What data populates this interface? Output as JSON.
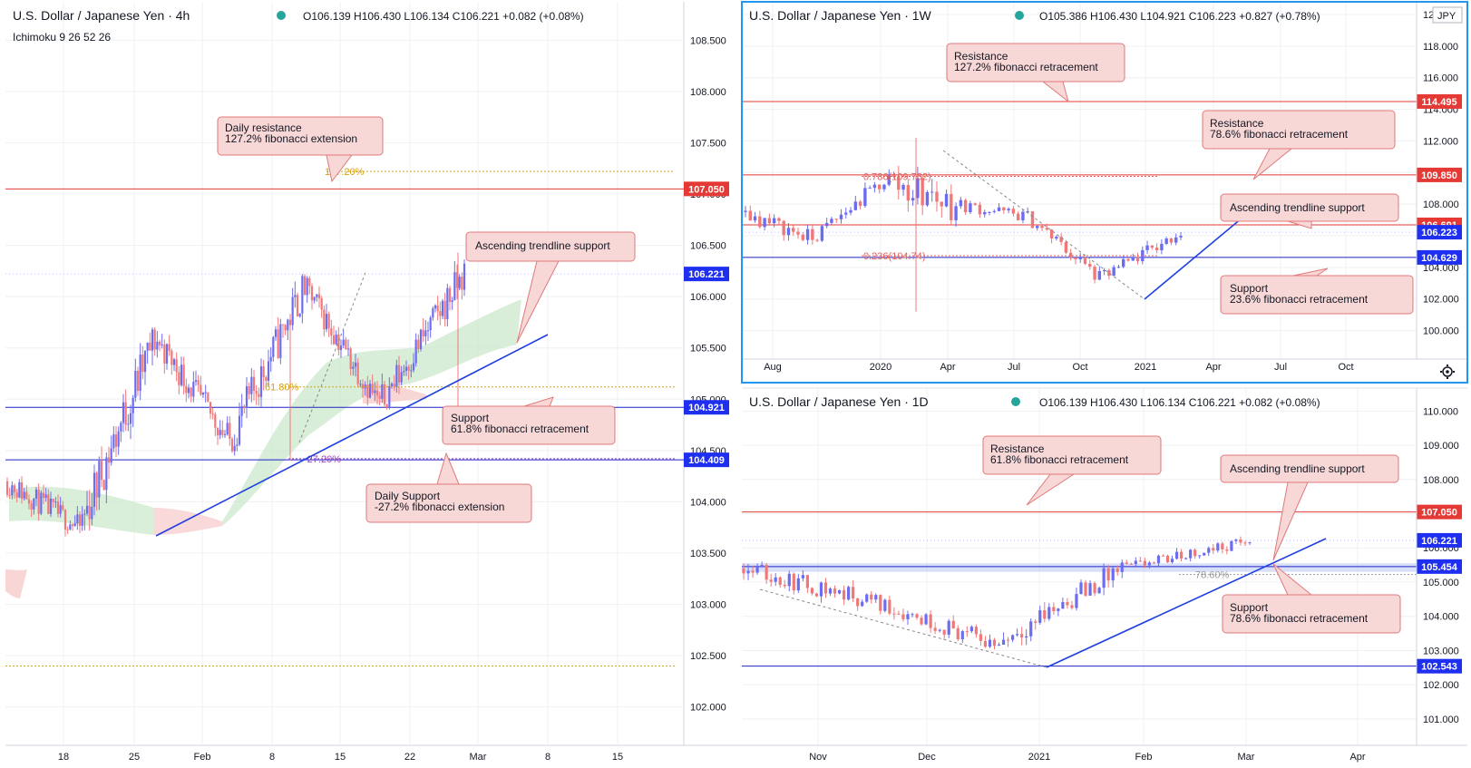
{
  "colors": {
    "up": "#6c6cf0",
    "down": "#f07878",
    "resistance": "#e53935",
    "support": "#1e22c8",
    "fib_gold": "#d4a017",
    "fib_red": "#e06060",
    "callout_fill": "#f8d7d7",
    "callout_stroke": "#e07a7a",
    "cloud_bull": "#cbe8cb",
    "cloud_bear": "#f8cfcf",
    "grid": "#eef0f3"
  },
  "panels": {
    "4h": {
      "title": "U.S. Dollar / Japanese Yen · 4h",
      "ohlc": "O106.139  H106.430  L106.134  C106.221  +0.082 (+0.08%)",
      "indicator": "Ichimoku 9 26 52 26"
    },
    "1w": {
      "title": "U.S. Dollar / Japanese Yen · 1W",
      "ohlc": "O105.386  H106.430  L104.921  C106.223  +0.827 (+0.78%)",
      "currency": "JPY"
    },
    "1d": {
      "title": "U.S. Dollar / Japanese Yen · 1D",
      "ohlc": "O106.139  H106.430  L106.134  C106.221  +0.082 (+0.08%)"
    }
  },
  "chart_data": [
    {
      "type": "candlestick",
      "title": "U.S. Dollar / Japanese Yen · 4h",
      "ylim": [
        101.75,
        108.75
      ],
      "y_ticks": [
        "108.500",
        "108.000",
        "107.500",
        "107.000",
        "106.500",
        "106.000",
        "105.500",
        "105.000",
        "104.500",
        "104.000",
        "103.500",
        "103.000",
        "102.500",
        "102.000"
      ],
      "x_ticks": [
        "18",
        "25",
        "Feb",
        "8",
        "15",
        "22",
        "Mar",
        "8",
        "15"
      ],
      "grid": true,
      "levels": [
        {
          "value": 107.05,
          "label": "107.050",
          "kind": "resistance"
        },
        {
          "value": 104.921,
          "label": "104.921",
          "kind": "support"
        },
        {
          "value": 104.409,
          "label": "104.409",
          "kind": "support"
        },
        {
          "value": 106.221,
          "label": "106.221",
          "kind": "price"
        }
      ],
      "fib_levels": [
        {
          "value": 107.22,
          "label": "127.20%"
        },
        {
          "value": 105.12,
          "label": "61.80%"
        },
        {
          "value": 104.42,
          "label": "-27.20%"
        },
        {
          "value": 102.4,
          "label": ""
        }
      ],
      "callouts": [
        "Daily resistance\n127.2% fibonacci extension",
        "Ascending trendline support",
        "Support\n61.8% fibonacci retracement",
        "Daily Support\n-27.2% fibonacci extension"
      ],
      "trendline": [
        [
          103.6,
          "Jan 27"
        ],
        [
          105.55,
          "Mar 3"
        ]
      ],
      "series": [
        {
          "segment": "Jan 12 - Jan 27",
          "start": 104.2,
          "end": 103.75,
          "low": 103.33,
          "high": 104.4
        },
        {
          "segment": "Jan 27 - Feb 5",
          "start": 103.75,
          "end": 105.6,
          "low": 103.6,
          "high": 105.7
        },
        {
          "segment": "Feb 5 - Feb 11",
          "start": 105.6,
          "end": 104.6,
          "low": 104.4,
          "high": 105.75
        },
        {
          "segment": "Feb 11 - Feb 17",
          "start": 104.6,
          "end": 106.1,
          "low": 104.45,
          "high": 106.22
        },
        {
          "segment": "Feb 17 - Feb 22",
          "start": 106.1,
          "end": 104.95,
          "low": 104.92,
          "high": 106.2
        },
        {
          "segment": "Feb 22 - Feb 26",
          "start": 104.95,
          "end": 106.22,
          "low": 104.9,
          "high": 106.43
        }
      ]
    },
    {
      "type": "candlestick",
      "title": "U.S. Dollar / Japanese Yen · 1W",
      "ylim": [
        99.0,
        120.0
      ],
      "y_ticks": [
        "120.000",
        "118.000",
        "116.000",
        "114.000",
        "112.000",
        "110.000",
        "108.000",
        "106.000",
        "104.000",
        "102.000",
        "100.000"
      ],
      "x_ticks": [
        "Aug",
        "2020",
        "Apr",
        "Jul",
        "Oct",
        "2021",
        "Apr",
        "Jul",
        "Oct"
      ],
      "grid": true,
      "levels": [
        {
          "value": 114.495,
          "label": "114.495",
          "kind": "resistance"
        },
        {
          "value": 109.85,
          "label": "109.850",
          "kind": "resistance"
        },
        {
          "value": 106.691,
          "label": "106.691",
          "kind": "resistance"
        },
        {
          "value": 106.223,
          "label": "106.223",
          "kind": "price"
        },
        {
          "value": 104.629,
          "label": "104.629",
          "kind": "support"
        }
      ],
      "fib_levels": [
        {
          "value": 109.76,
          "label": "0.786(109.762)"
        },
        {
          "value": 104.74,
          "label": "0.236(104.74)"
        }
      ],
      "callouts": [
        "Resistance\n127.2% fibonacci retracement",
        "Resistance\n78.6% fibonacci retracement",
        "Ascending trendline support",
        "Support\n23.6% fibonacci retracement"
      ],
      "series": [
        {
          "segment": "Jul 2019 - Oct 2019",
          "start": 107.5,
          "end": 105.8,
          "low": 104.5,
          "high": 109.3
        },
        {
          "segment": "Oct 2019 - Feb 2020",
          "start": 105.8,
          "end": 109.5,
          "low": 105.6,
          "high": 110.5
        },
        {
          "segment": "Feb 2020 - Mar 2020",
          "start": 109.5,
          "end": 108.0,
          "low": 101.2,
          "high": 112.2
        },
        {
          "segment": "Mar 2020 - Jun 2020",
          "start": 108.0,
          "end": 107.2,
          "low": 105.8,
          "high": 109.8
        },
        {
          "segment": "Jun 2020 - Dec 2020",
          "start": 107.2,
          "end": 103.3,
          "low": 102.9,
          "high": 107.5
        },
        {
          "segment": "Dec 2020 - Feb 2021",
          "start": 103.3,
          "end": 106.2,
          "low": 102.6,
          "high": 106.43
        }
      ]
    },
    {
      "type": "candlestick",
      "title": "U.S. Dollar / Japanese Yen · 1D",
      "ylim": [
        100.6,
        110.3
      ],
      "y_ticks": [
        "110.000",
        "109.000",
        "108.000",
        "107.000",
        "106.000",
        "105.000",
        "104.000",
        "103.000",
        "102.000",
        "101.000"
      ],
      "x_ticks": [
        "Nov",
        "Dec",
        "2021",
        "Feb",
        "Mar",
        "Apr"
      ],
      "grid": true,
      "levels": [
        {
          "value": 107.05,
          "label": "107.050",
          "kind": "resistance"
        },
        {
          "value": 106.221,
          "label": "106.221",
          "kind": "price"
        },
        {
          "value": 105.454,
          "label": "105.454",
          "kind": "support"
        },
        {
          "value": 102.543,
          "label": "102.543",
          "kind": "support"
        }
      ],
      "fib_levels": [
        {
          "value": 105.22,
          "label": "78.60%"
        }
      ],
      "callouts": [
        "Resistance\n61.8% fibonacci retracement",
        "Ascending trendline support",
        "Support\n78.6% fibonacci retracement"
      ],
      "series": [
        {
          "segment": "Oct 2020 - Nov 2020",
          "start": 105.4,
          "end": 104.5,
          "low": 103.2,
          "high": 105.8
        },
        {
          "segment": "Nov 2020 - Jan 2021",
          "start": 104.5,
          "end": 103.2,
          "low": 102.6,
          "high": 105.0
        },
        {
          "segment": "Jan 2021 - Feb 2021",
          "start": 103.2,
          "end": 105.4,
          "low": 102.6,
          "high": 105.7
        },
        {
          "segment": "Feb 2021 - Mar 2021",
          "start": 105.4,
          "end": 106.2,
          "low": 104.9,
          "high": 106.43
        }
      ]
    }
  ]
}
